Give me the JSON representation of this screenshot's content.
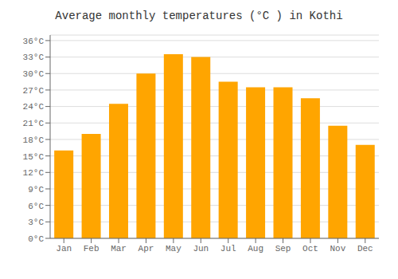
{
  "chart_data": {
    "type": "bar",
    "title": "Average monthly temperatures (°C ) in Kothi",
    "categories": [
      "Jan",
      "Feb",
      "Mar",
      "Apr",
      "May",
      "Jun",
      "Jul",
      "Aug",
      "Sep",
      "Oct",
      "Nov",
      "Dec"
    ],
    "values": [
      16.0,
      19.0,
      24.5,
      30.0,
      33.5,
      33.0,
      28.5,
      27.5,
      27.5,
      25.5,
      20.5,
      17.0
    ],
    "color": "#FFA500",
    "ylim": [
      0,
      37
    ],
    "yticks": [
      {
        "value": 0,
        "label": "0°C"
      },
      {
        "value": 3,
        "label": "3°C"
      },
      {
        "value": 6,
        "label": "6°C"
      },
      {
        "value": 9,
        "label": "9°C"
      },
      {
        "value": 12,
        "label": "12°C"
      },
      {
        "value": 15,
        "label": "15°C"
      },
      {
        "value": 18,
        "label": "18°C"
      },
      {
        "value": 21,
        "label": "21°C"
      },
      {
        "value": 24,
        "label": "24°C"
      },
      {
        "value": 27,
        "label": "27°C"
      },
      {
        "value": 30,
        "label": "30°C"
      },
      {
        "value": 33,
        "label": "33°C"
      },
      {
        "value": 36,
        "label": "36°C"
      }
    ],
    "grid": true
  }
}
